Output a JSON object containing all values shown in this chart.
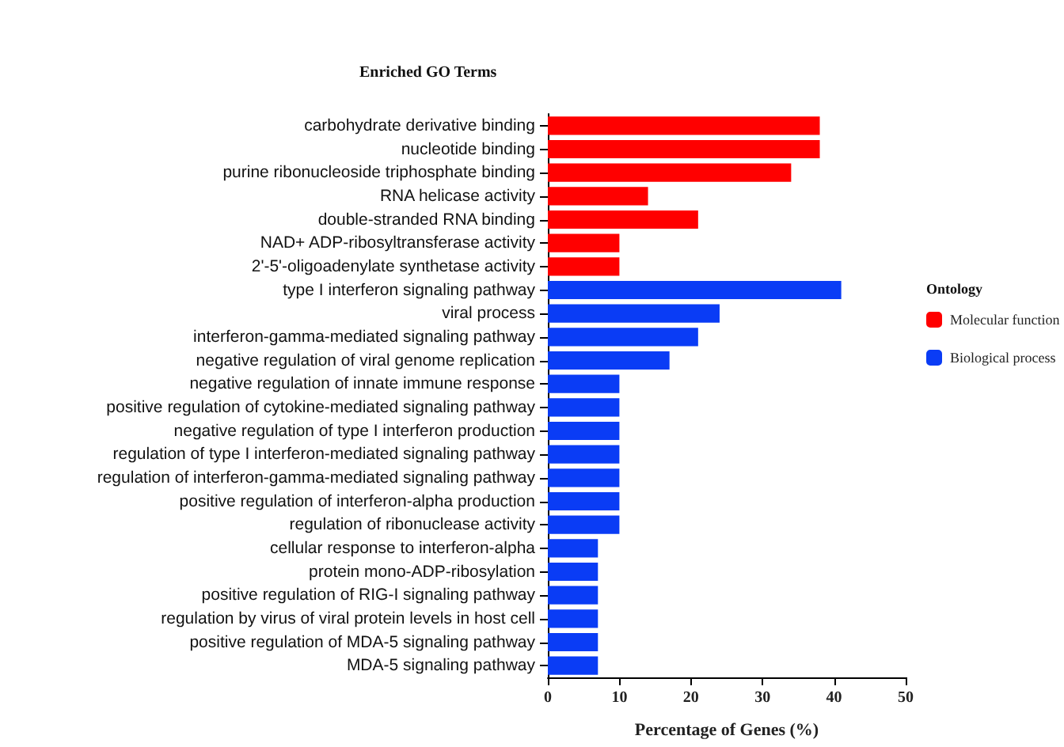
{
  "chart_data": {
    "type": "bar",
    "orientation": "horizontal",
    "title": "Enriched GO Terms",
    "xlabel": "Percentage of Genes (%)",
    "legend_title": "Ontology",
    "legend": "right",
    "categories": [
      "carbohydrate derivative binding",
      "nucleotide binding",
      "purine ribonucleoside triphosphate binding",
      "RNA helicase activity",
      "double-stranded RNA binding",
      "NAD+ ADP-ribosyltransferase activity",
      "2'-5'-oligoadenylate synthetase activity",
      "type I interferon signaling pathway",
      "viral process",
      "interferon-gamma-mediated signaling pathway",
      "negative regulation of viral genome replication",
      "negative regulation of innate immune response",
      "positive regulation of cytokine-mediated signaling pathway",
      "negative regulation of type I interferon production",
      "regulation of type I interferon-mediated signaling pathway",
      "regulation of interferon-gamma-mediated signaling pathway",
      "positive regulation of interferon-alpha production",
      "regulation of ribonuclease activity",
      "cellular response to interferon-alpha",
      "protein mono-ADP-ribosylation",
      "positive regulation of RIG-I signaling pathway",
      "regulation by virus of viral protein levels in host cell",
      "positive regulation of MDA-5 signaling pathway",
      "MDA-5 signaling pathway"
    ],
    "series": [
      {
        "name": "Molecular function",
        "color": "#ff0000",
        "values": [
          38,
          38,
          34,
          14,
          21,
          10,
          10,
          null,
          null,
          null,
          null,
          null,
          null,
          null,
          null,
          null,
          null,
          null,
          null,
          null,
          null,
          null,
          null,
          null
        ]
      },
      {
        "name": "Biological process",
        "color": "#0a3cf5",
        "values": [
          null,
          null,
          null,
          null,
          null,
          null,
          null,
          41,
          24,
          21,
          17,
          10,
          10,
          10,
          10,
          10,
          10,
          10,
          7,
          7,
          7,
          7,
          7,
          7
        ]
      }
    ],
    "xlim": [
      0,
      50
    ],
    "xticks": [
      0,
      10,
      20,
      30,
      40,
      50
    ],
    "grid": false
  }
}
